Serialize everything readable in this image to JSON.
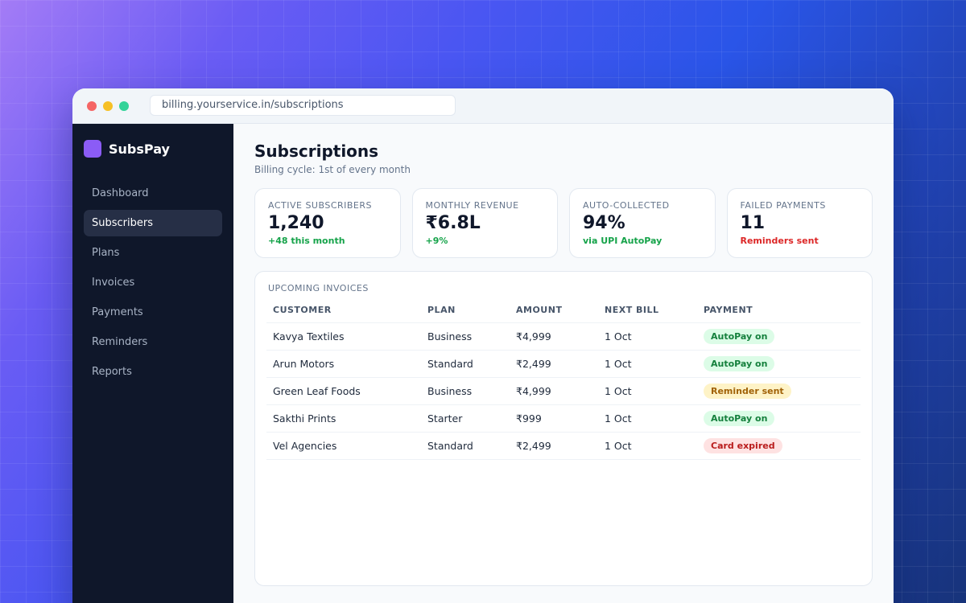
{
  "browser": {
    "url": "billing.yourservice.in/subscriptions"
  },
  "brand": {
    "name": "SubsPay",
    "logo_color": "#8b5cf6"
  },
  "sidebar": {
    "items": [
      {
        "label": "Dashboard",
        "active": false
      },
      {
        "label": "Subscribers",
        "active": true
      },
      {
        "label": "Plans",
        "active": false
      },
      {
        "label": "Invoices",
        "active": false
      },
      {
        "label": "Payments",
        "active": false
      },
      {
        "label": "Reminders",
        "active": false
      },
      {
        "label": "Reports",
        "active": false
      }
    ]
  },
  "header": {
    "title": "Subscriptions",
    "subtitle": "Billing cycle: 1st of every month"
  },
  "stats": [
    {
      "label": "ACTIVE SUBSCRIBERS",
      "value": "1,240",
      "note": "+48 this month",
      "note_color": "green"
    },
    {
      "label": "MONTHLY REVENUE",
      "value": "₹6.8L",
      "note": "+9%",
      "note_color": "green"
    },
    {
      "label": "AUTO-COLLECTED",
      "value": "94%",
      "note": "via UPI AutoPay",
      "note_color": "green"
    },
    {
      "label": "FAILED PAYMENTS",
      "value": "11",
      "note": "Reminders sent",
      "note_color": "red"
    }
  ],
  "invoices": {
    "title": "UPCOMING INVOICES",
    "columns": [
      "CUSTOMER",
      "PLAN",
      "AMOUNT",
      "NEXT BILL",
      "PAYMENT"
    ],
    "rows": [
      {
        "customer": "Kavya Textiles",
        "plan": "Business",
        "amount": "₹4,999",
        "next_bill": "1 Oct",
        "payment": "AutoPay on",
        "status": "green"
      },
      {
        "customer": "Arun Motors",
        "plan": "Standard",
        "amount": "₹2,499",
        "next_bill": "1 Oct",
        "payment": "AutoPay on",
        "status": "green"
      },
      {
        "customer": "Green Leaf Foods",
        "plan": "Business",
        "amount": "₹4,999",
        "next_bill": "1 Oct",
        "payment": "Reminder sent",
        "status": "yellow"
      },
      {
        "customer": "Sakthi Prints",
        "plan": "Starter",
        "amount": "₹999",
        "next_bill": "1 Oct",
        "payment": "AutoPay on",
        "status": "green"
      },
      {
        "customer": "Vel Agencies",
        "plan": "Standard",
        "amount": "₹2,499",
        "next_bill": "1 Oct",
        "payment": "Card expired",
        "status": "red"
      }
    ]
  }
}
